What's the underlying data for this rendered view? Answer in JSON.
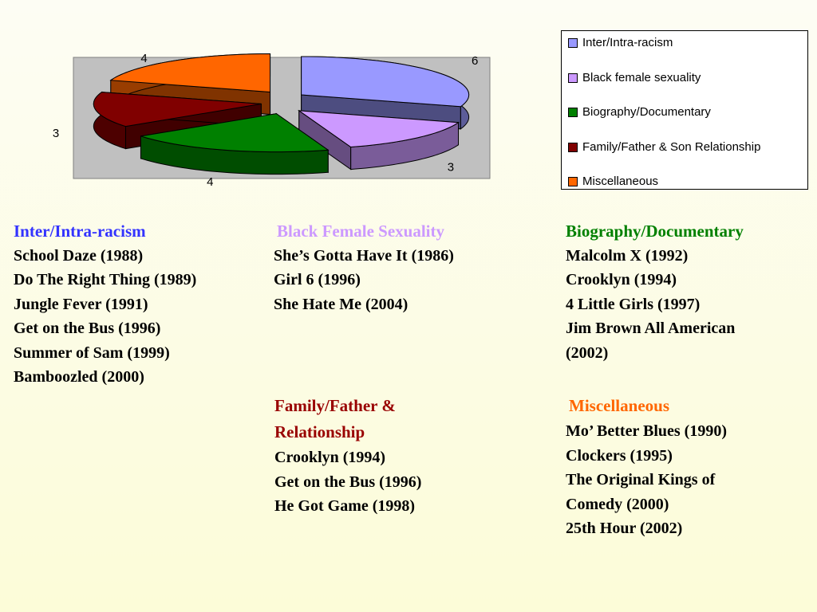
{
  "chart_data": {
    "type": "pie",
    "categories": [
      "Inter/Intra-racism",
      "Black female sexuality",
      "Biography/Documentary",
      "Family/Father & Son Relationship",
      "Miscellaneous"
    ],
    "values": [
      6,
      3,
      4,
      3,
      4
    ],
    "data_labels": [
      "6",
      "3",
      "4",
      "3",
      "4"
    ],
    "colors": [
      "#9999ff",
      "#cc99ff",
      "#008000",
      "#800000",
      "#ff6600"
    ],
    "legend": {
      "placement": "right",
      "entries": [
        "Inter/Intra-racism",
        "Black female sexuality",
        "Biography/Documentary",
        "Family/Father & Son Relationship",
        "Miscellaneous"
      ]
    },
    "exploded": true,
    "three_d": true,
    "plot_background": "#c0c0c0"
  },
  "categories_text": {
    "racism": {
      "heading": "Inter/Intra-racism",
      "color": "#3333ff",
      "films": [
        "School Daze (1988)",
        "Do The Right Thing (1989)",
        "Jungle Fever (1991)",
        "Get on the Bus (1996)",
        "Summer of Sam (1999)",
        "Bamboozled (2000)"
      ]
    },
    "sexuality": {
      "heading": "Black Female Sexuality",
      "color": "#cc99ff",
      "films": [
        "She’s Gotta Have It (1986)",
        "Girl 6 (1996)",
        "She Hate Me (2004)"
      ]
    },
    "biography": {
      "heading": "Biography/Documentary",
      "color": "#008000",
      "films": [
        "Malcolm X (1992)",
        "Crooklyn (1994)",
        "4 Little Girls (1997)",
        "Jim Brown All American",
        "(2002)"
      ]
    },
    "family": {
      "heading_line1": "Family/Father &",
      "heading_line2": "Relationship",
      "color": "#990000",
      "films": [
        "Crooklyn (1994)",
        "Get on the Bus (1996)",
        "He Got Game (1998)"
      ]
    },
    "misc": {
      "heading": "Miscellaneous",
      "color": "#ff6600",
      "films": [
        "Mo’ Better Blues (1990)",
        "Clockers (1995)",
        "The Original Kings of",
        "Comedy (2000)",
        "25th Hour (2002)"
      ]
    }
  }
}
